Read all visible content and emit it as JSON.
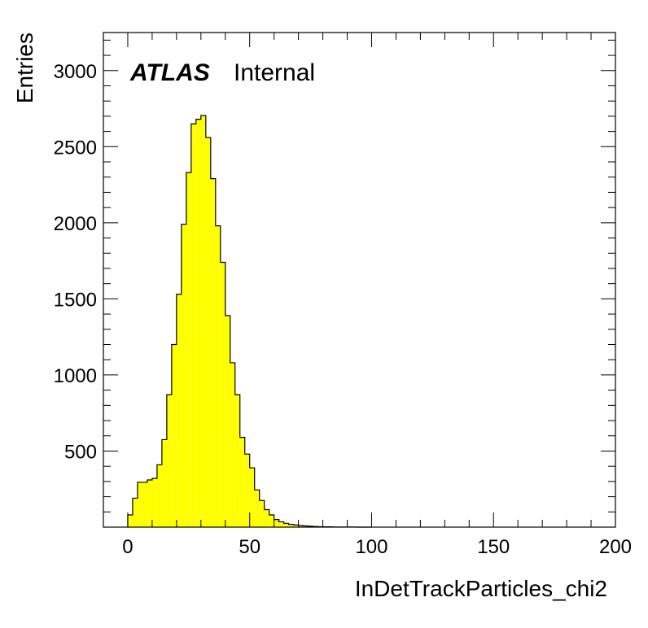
{
  "chart_data": {
    "type": "bar",
    "histogram": true,
    "title": "",
    "xlabel": "InDetTrackParticles_chi2",
    "ylabel": "Entries",
    "xlim": [
      -10,
      200
    ],
    "ylim": [
      0,
      3250
    ],
    "bin_width": 2,
    "x_ticks": [
      0,
      50,
      100,
      150,
      200
    ],
    "y_ticks": [
      500,
      1000,
      1500,
      2000,
      2500,
      3000
    ],
    "fill_color": "#ffff00",
    "line_color": "#000000",
    "bin_edges_start": 0,
    "values": [
      80,
      190,
      295,
      295,
      310,
      320,
      410,
      575,
      870,
      1200,
      1530,
      1990,
      2330,
      2650,
      2680,
      2705,
      2560,
      2290,
      1980,
      1740,
      1390,
      1080,
      870,
      590,
      480,
      390,
      245,
      175,
      115,
      80,
      50,
      35,
      25,
      18,
      14,
      10,
      8,
      6,
      4,
      3,
      2,
      2,
      1,
      1,
      1,
      1,
      1,
      0,
      0,
      0
    ],
    "annotations": {
      "experiment": "ATLAS",
      "status": "Internal"
    }
  }
}
